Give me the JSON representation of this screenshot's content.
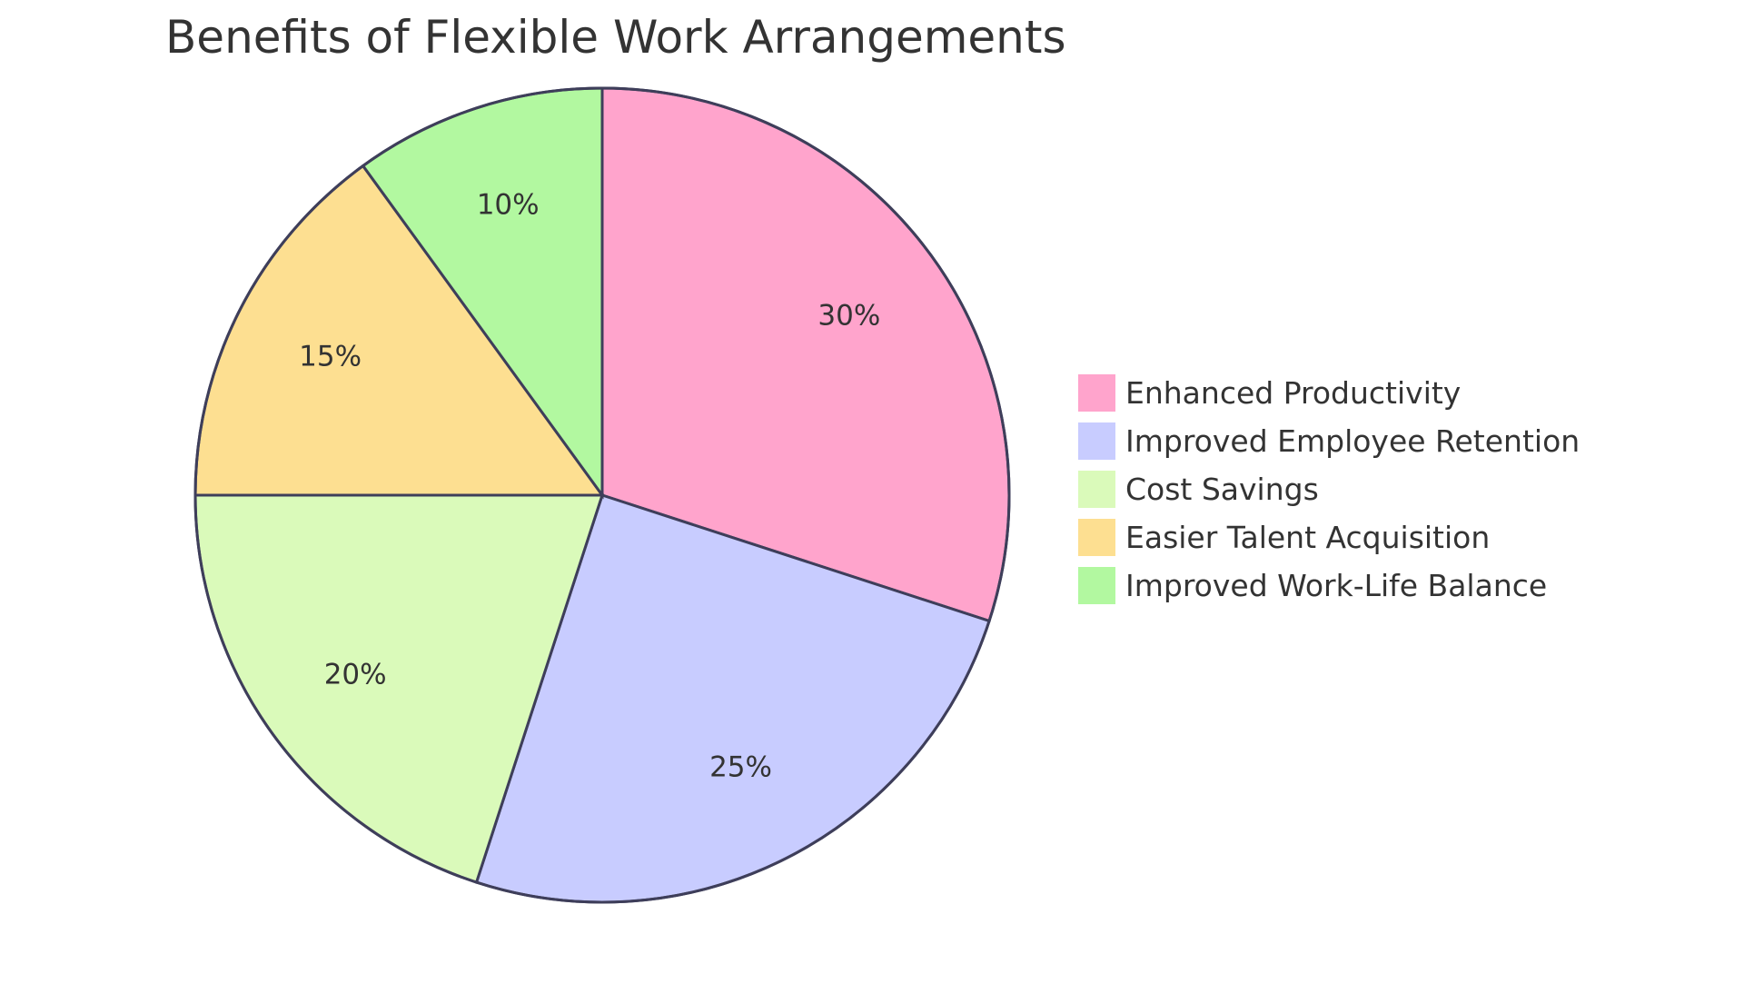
{
  "chart_data": {
    "type": "pie",
    "title": "Benefits of Flexible Work Arrangements",
    "legend_position": "right",
    "slices": [
      {
        "label": "Enhanced Productivity",
        "value": 30,
        "display": "30%",
        "color": "#FFA4CC"
      },
      {
        "label": "Improved Employee Retention",
        "value": 25,
        "display": "25%",
        "color": "#C8CCFF"
      },
      {
        "label": "Cost Savings",
        "value": 20,
        "display": "20%",
        "color": "#DAFABA"
      },
      {
        "label": "Easier Talent Acquisition",
        "value": 15,
        "display": "15%",
        "color": "#FDDF91"
      },
      {
        "label": "Improved Work-Life Balance",
        "value": 10,
        "display": "10%",
        "color": "#B2F8A0"
      }
    ]
  },
  "colors": {
    "slice_border": "#3E3E5A",
    "text": "#333333"
  }
}
